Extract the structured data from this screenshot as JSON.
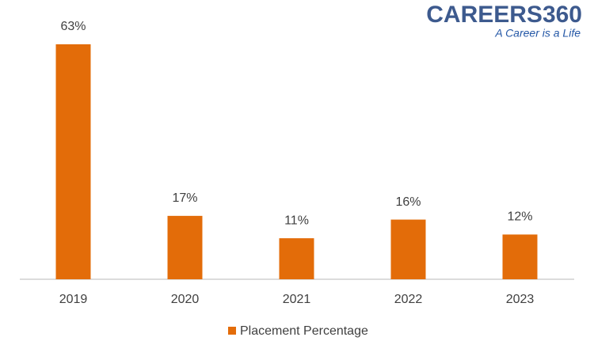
{
  "chart_data": {
    "type": "bar",
    "brand": {
      "name": "CAREERS360",
      "tagline": "A Career is a Life"
    },
    "categories": [
      "2019",
      "2020",
      "2021",
      "2022",
      "2023"
    ],
    "series": [
      {
        "name": "Placement Percentage",
        "color": "#e36c09",
        "values": [
          63,
          17,
          11,
          16,
          12
        ],
        "value_labels": [
          "63%",
          "17%",
          "11%",
          "16%",
          "12%"
        ]
      }
    ],
    "legend": "bottom"
  }
}
